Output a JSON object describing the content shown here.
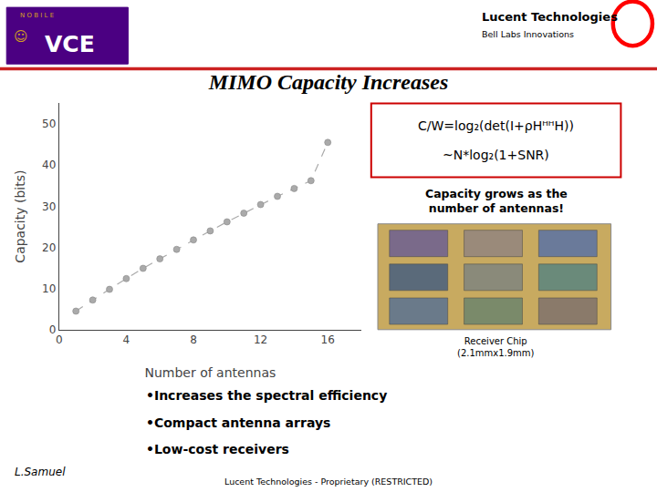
{
  "chart_data": {
    "type": "scatter",
    "title": "MIMO Capacity Increases",
    "xlabel": "Number of antennas",
    "ylabel": "Capacity (bits)",
    "x": [
      1,
      2,
      3,
      4,
      5,
      6,
      7,
      8,
      9,
      10,
      11,
      12,
      13,
      14,
      15,
      16
    ],
    "values": [
      4.5,
      7.2,
      9.8,
      12.4,
      14.9,
      17.2,
      19.5,
      21.8,
      24.0,
      26.2,
      28.3,
      30.4,
      32.4,
      34.3,
      36.2,
      45.5
    ],
    "color": "#aaaaaa",
    "marker": "circle",
    "line_style": "dashed",
    "xlim": [
      0,
      18
    ],
    "ylim": [
      0,
      55
    ],
    "xticks": [
      0,
      4,
      8,
      12,
      16
    ],
    "yticks": [
      0,
      10,
      20,
      30,
      40,
      50
    ],
    "grid": false,
    "annotations": [
      "N O B I L E",
      "VCE",
      "☺",
      "Lucent Technologies",
      "Bell Labs Innovations",
      "C/W=log₂(det(I+ρHᴴᴴH))",
      "~N*log₂(1+SNR)",
      "Capacity grows as the\nnumber of antennas!",
      "Receiver Chip\n(2.1mmx1.9mm)",
      "•Increases the spectral efficiency",
      "•Compact antenna arrays",
      "•Low-cost receivers",
      "L.Samuel",
      "Lucent Technologies - Proprietary (RESTRICTED)"
    ]
  }
}
